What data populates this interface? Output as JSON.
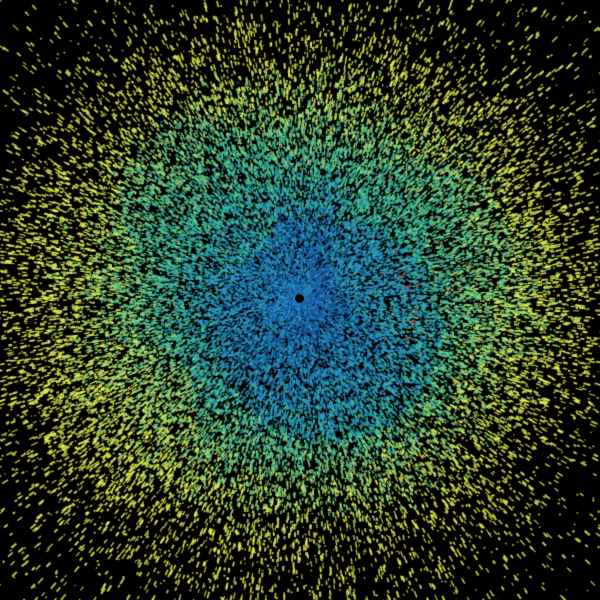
{
  "background": "#000000",
  "colormap": {
    "low": "#1a5fa8",
    "mid_low": "#2a9ac8",
    "mid": "#3fbfa0",
    "mid_high": "#8fd87a",
    "high": "#e6f050",
    "peak": "#f0a020",
    "extreme": "#e04010"
  },
  "radar_site_marker": "black-dot"
}
